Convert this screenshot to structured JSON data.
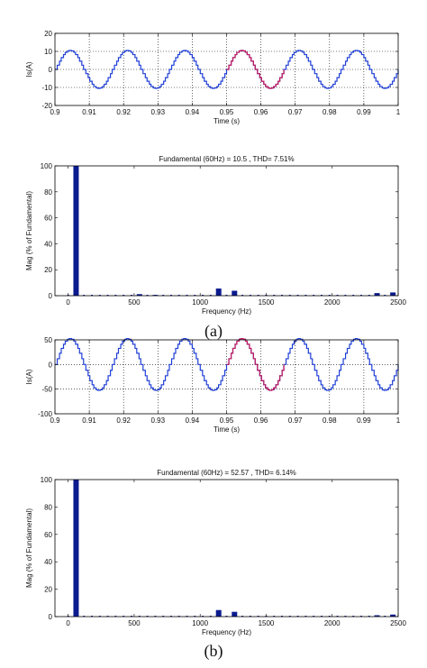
{
  "chart_data": [
    {
      "type": "line",
      "title": "",
      "xlabel": "Time (s)",
      "ylabel": "Is(A)",
      "xlim": [
        0.9,
        1.0
      ],
      "ylim": [
        -20,
        20
      ],
      "xticks": [
        0.9,
        0.91,
        0.92,
        0.93,
        0.94,
        0.95,
        0.96,
        0.97,
        0.98,
        0.99,
        1
      ],
      "xtick_labels": [
        "0.9",
        "0.91",
        "0.92",
        "0.93",
        "0.94",
        "0.95",
        "0.96",
        "0.97",
        "0.98",
        "0.99",
        "1"
      ],
      "yticks": [
        -20,
        -10,
        0,
        10,
        20
      ],
      "ytick_labels": [
        "-20",
        "-10",
        "0",
        "10",
        "20"
      ],
      "grid": true,
      "series": [
        {
          "amplitude": 10.5,
          "frequency_hz": 60,
          "color": "#1f3fd6"
        },
        {
          "amplitude": 10.5,
          "frequency_hz": 60,
          "color": "#c2185b",
          "x_range": [
            0.95,
            0.9667
          ]
        }
      ]
    },
    {
      "type": "bar",
      "title": "Fundamental (60Hz) = 10.5 , THD= 7.51%",
      "xlabel": "Frequency (Hz)",
      "ylabel": "Mag (% of Fundamental)",
      "xlim": [
        -100,
        2500
      ],
      "ylim": [
        0,
        100
      ],
      "xticks": [
        0,
        500,
        1000,
        1500,
        2000,
        2500
      ],
      "xtick_labels": [
        "0",
        "500",
        "1000",
        "1500",
        "2000",
        "2500"
      ],
      "yticks": [
        0,
        20,
        40,
        60,
        80,
        100
      ],
      "ytick_labels": [
        "0",
        "20",
        "40",
        "60",
        "80",
        "100"
      ],
      "grid": false,
      "color": "#0a1a8f",
      "bars": [
        {
          "x": 60,
          "y": 100
        },
        {
          "x": 540,
          "y": 1.2
        },
        {
          "x": 660,
          "y": 0.6
        },
        {
          "x": 1140,
          "y": 5.5
        },
        {
          "x": 1260,
          "y": 3.8
        },
        {
          "x": 2340,
          "y": 2.0
        },
        {
          "x": 2460,
          "y": 2.5
        }
      ]
    },
    {
      "type": "line",
      "title": "",
      "xlabel": "Time (s)",
      "ylabel": "Is(A)",
      "xlim": [
        0.9,
        1.0
      ],
      "ylim": [
        -100,
        50
      ],
      "xticks": [
        0.9,
        0.91,
        0.92,
        0.93,
        0.94,
        0.95,
        0.96,
        0.97,
        0.98,
        0.99,
        1
      ],
      "xtick_labels": [
        "0.9",
        "0.91",
        "0.92",
        "0.93",
        "0.94",
        "0.95",
        "0.96",
        "0.97",
        "0.98",
        "0.99",
        "1"
      ],
      "yticks": [
        -100,
        -50,
        0,
        50
      ],
      "ytick_labels": [
        "-100",
        "-50",
        "0",
        "50"
      ],
      "grid": true,
      "series": [
        {
          "amplitude": 52.57,
          "frequency_hz": 60,
          "color": "#1f3fd6"
        },
        {
          "amplitude": 52.57,
          "frequency_hz": 60,
          "color": "#c2185b",
          "x_range": [
            0.95,
            0.9667
          ]
        }
      ]
    },
    {
      "type": "bar",
      "title": "Fundamental (60Hz) = 52.57 , THD= 6.14%",
      "xlabel": "Frequency (Hz)",
      "ylabel": "Mag (% of Fundamental)",
      "xlim": [
        -100,
        2500
      ],
      "ylim": [
        0,
        100
      ],
      "xticks": [
        0,
        500,
        1000,
        1500,
        2000,
        2500
      ],
      "xtick_labels": [
        "0",
        "500",
        "1000",
        "1500",
        "2000",
        "2500"
      ],
      "yticks": [
        0,
        20,
        40,
        60,
        80,
        100
      ],
      "ytick_labels": [
        "0",
        "20",
        "40",
        "60",
        "80",
        "100"
      ],
      "grid": false,
      "color": "#0a1a8f",
      "bars": [
        {
          "x": 60,
          "y": 100
        },
        {
          "x": 1140,
          "y": 4.8
        },
        {
          "x": 1260,
          "y": 3.5
        },
        {
          "x": 2340,
          "y": 1.0
        },
        {
          "x": 2460,
          "y": 1.5
        }
      ]
    }
  ],
  "captions": [
    "(a)",
    "(b)"
  ]
}
